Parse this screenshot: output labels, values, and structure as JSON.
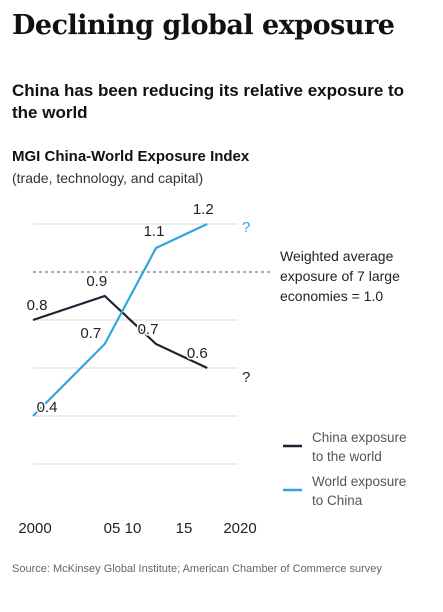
{
  "header": {
    "title": "Declining global exposure",
    "subtitle": "China has been reducing its relative exposure to the world"
  },
  "chart_data": {
    "type": "line",
    "title": "MGI China-World Exposure Index",
    "subtitle": "(trade, technology, and capital)",
    "x_ticks": [
      "2000",
      "05",
      "10",
      "15",
      "2020"
    ],
    "xlim": [
      2000,
      2020
    ],
    "ylim": [
      0,
      1.25
    ],
    "y_gridlines": [
      0.2,
      0.4,
      0.6,
      0.8,
      1.0,
      1.2
    ],
    "reference_line": {
      "value": 1.0,
      "label_lines": [
        "Weighted average",
        "exposure of 7 large",
        "economies = 1.0"
      ]
    },
    "series": [
      {
        "name": "China exposure to the world",
        "legend_lines": [
          "China exposure",
          "to the world"
        ],
        "color": "#1b2333",
        "x": [
          2000,
          2007,
          2012,
          2017
        ],
        "values": [
          0.8,
          0.9,
          0.7,
          0.6
        ],
        "labels": [
          "0.8",
          "0.9",
          "0.7",
          "0.6"
        ],
        "end_marker": "?"
      },
      {
        "name": "World exposure to China",
        "legend_lines": [
          "World exposure",
          "to China"
        ],
        "color": "#2ea6de",
        "x": [
          2000,
          2007,
          2012,
          2017
        ],
        "values": [
          0.4,
          0.7,
          1.1,
          1.2
        ],
        "labels": [
          "0.4",
          "0.7",
          "1.1",
          "1.2"
        ],
        "end_marker": "?"
      }
    ]
  },
  "source": "Source: McKinsey Global Institute; American Chamber of Commerce survey"
}
